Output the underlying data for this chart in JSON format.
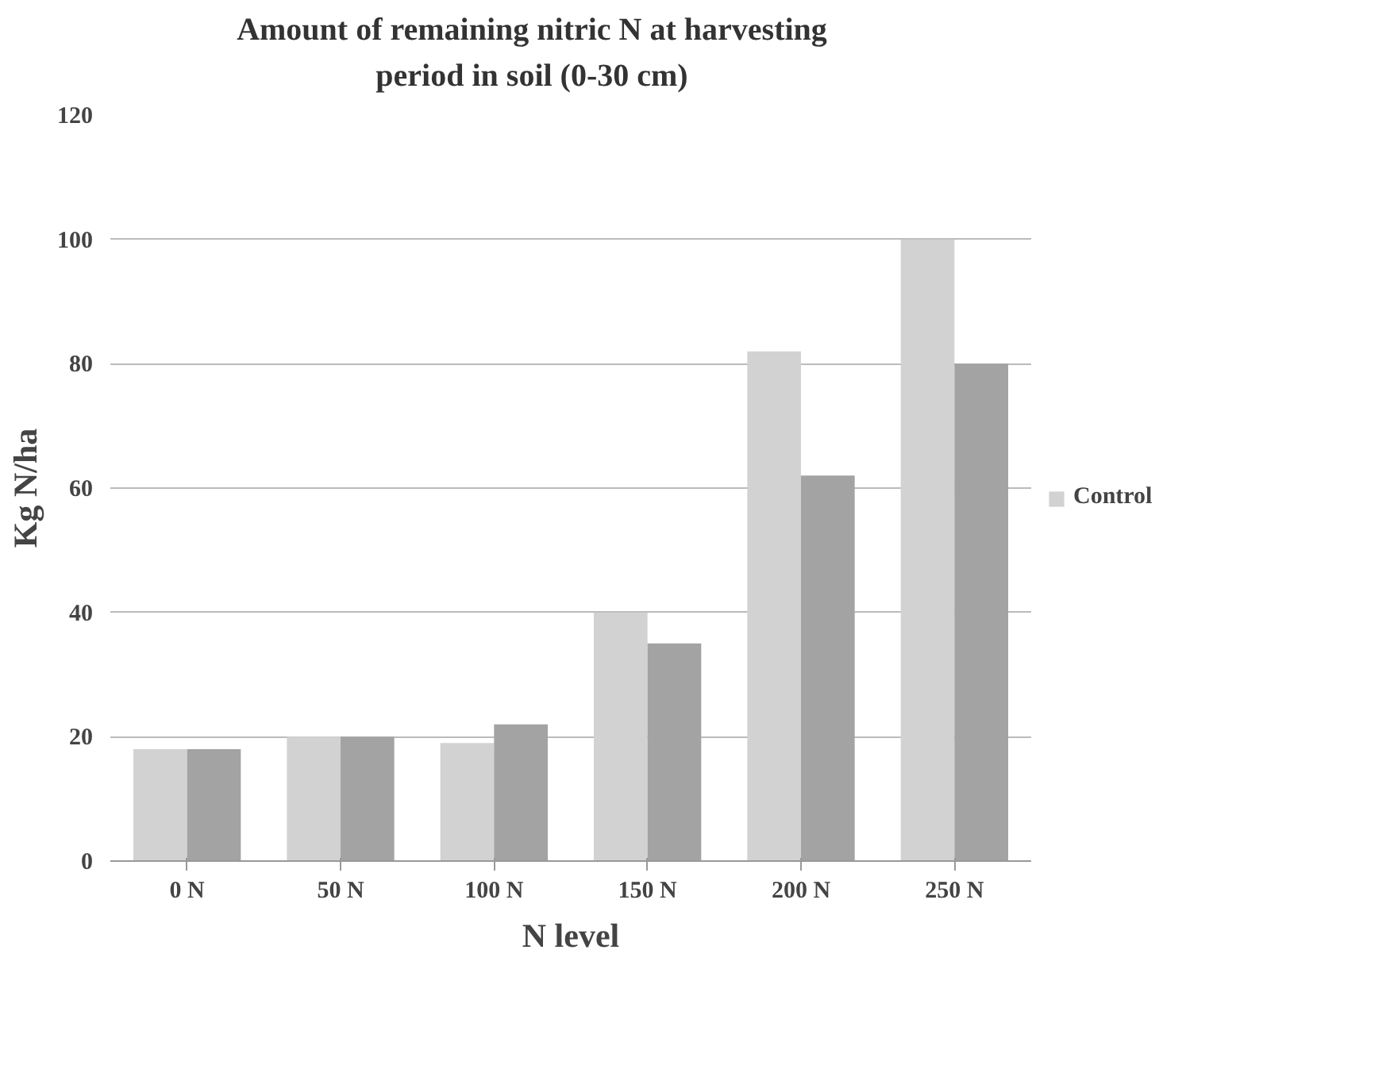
{
  "chart_data": {
    "type": "bar",
    "title": "Amount of remaining nitric N at harvesting\nperiod in soil (0-30 cm)",
    "xlabel": "N level",
    "ylabel": "Kg N/ha",
    "categories": [
      "0 N",
      "50 N",
      "100 N",
      "150 N",
      "200 N",
      "250 N"
    ],
    "series": [
      {
        "name": "Control",
        "color": "#d2d2d2",
        "values": [
          18,
          20,
          19,
          40,
          82,
          100
        ]
      },
      {
        "color": "#a3a3a3",
        "values": [
          18,
          20,
          22,
          35,
          62,
          80
        ]
      }
    ],
    "ylim": [
      0,
      120
    ],
    "yticks": [
      0,
      20,
      40,
      60,
      80,
      100,
      120
    ],
    "grid": "y",
    "legend": "right"
  }
}
